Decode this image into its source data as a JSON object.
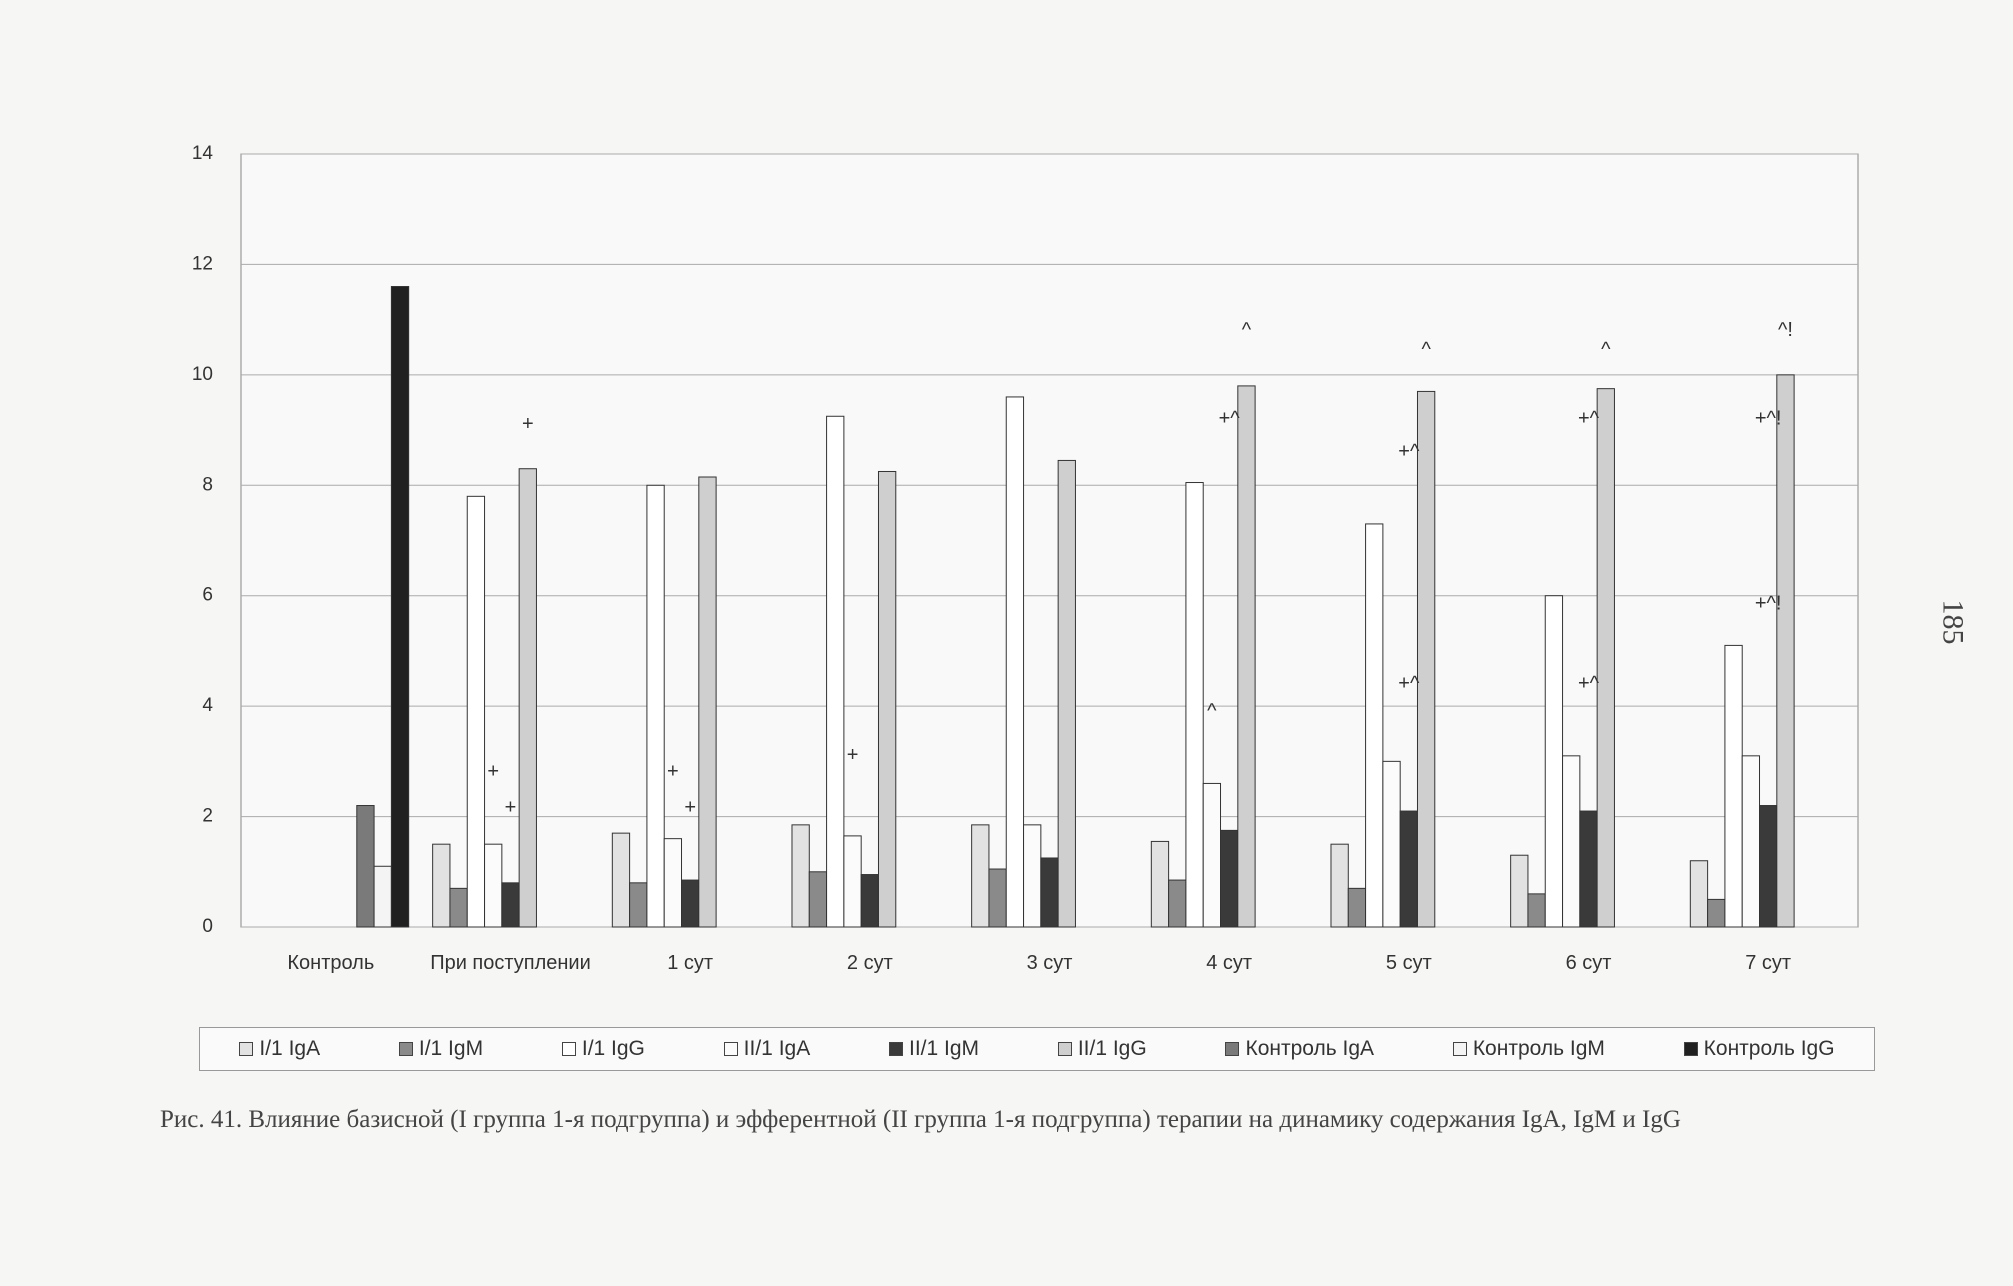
{
  "chart_data": {
    "type": "bar",
    "categories": [
      "Контроль",
      "При поступлении",
      "1 сут",
      "2 сут",
      "3 сут",
      "4 сут",
      "5 сут",
      "6 сут",
      "7 сут"
    ],
    "series": [
      {
        "name": "I/1 IgA",
        "color": "#e2e2e2",
        "values": [
          null,
          1.5,
          1.7,
          1.85,
          1.85,
          1.55,
          1.5,
          1.3,
          1.2
        ]
      },
      {
        "name": "I/1 IgM",
        "color": "#8a8a8a",
        "values": [
          null,
          0.7,
          0.8,
          1.0,
          1.05,
          0.85,
          0.7,
          0.6,
          0.5
        ]
      },
      {
        "name": "I/1 IgG",
        "color": "#ffffff",
        "values": [
          null,
          7.8,
          8.0,
          9.25,
          9.6,
          8.05,
          7.3,
          6.0,
          5.1
        ]
      },
      {
        "name": "II/1 IgA",
        "color": "#fbfbfb",
        "values": [
          null,
          1.5,
          1.6,
          1.65,
          1.85,
          2.6,
          3.0,
          3.1,
          3.1
        ]
      },
      {
        "name": "II/1 IgM",
        "color": "#3a3a3a",
        "values": [
          null,
          0.8,
          0.85,
          0.95,
          1.25,
          1.75,
          2.1,
          2.1,
          2.2
        ]
      },
      {
        "name": "II/1 IgG",
        "color": "#cfcfcf",
        "values": [
          null,
          8.3,
          8.15,
          8.25,
          8.45,
          9.8,
          9.7,
          9.75,
          10.0
        ]
      },
      {
        "name": "Контроль IgA",
        "color": "#7a7a7a",
        "values": [
          2.2,
          null,
          null,
          null,
          null,
          null,
          null,
          null,
          null
        ]
      },
      {
        "name": "Контроль IgM",
        "color": "#f4f4f4",
        "values": [
          1.1,
          null,
          null,
          null,
          null,
          null,
          null,
          null,
          null
        ]
      },
      {
        "name": "Контроль IgG",
        "color": "#202020",
        "values": [
          11.6,
          null,
          null,
          null,
          null,
          null,
          null,
          null,
          null
        ]
      }
    ],
    "ylim": [
      0,
      14
    ],
    "yticks": [
      0,
      2,
      4,
      6,
      8,
      10,
      12,
      14
    ],
    "grid": true,
    "legend": "bottom",
    "annotations": [
      {
        "text": "+",
        "category": 1,
        "series": 5,
        "y": 9.1
      },
      {
        "text": "+",
        "category": 1,
        "series": 3,
        "y": 2.8
      },
      {
        "text": "+",
        "category": 1,
        "series": 4,
        "y": 2.15
      },
      {
        "text": "+",
        "category": 2,
        "series": 3,
        "y": 2.8
      },
      {
        "text": "+",
        "category": 2,
        "series": 4,
        "y": 2.15
      },
      {
        "text": "+",
        "category": 3,
        "series": 3,
        "y": 3.1
      },
      {
        "text": "^",
        "category": 5,
        "series": 5,
        "y": 10.8
      },
      {
        "text": "+^",
        "category": 5,
        "series": 4,
        "y": 9.2
      },
      {
        "text": "^",
        "category": 5,
        "series": 3,
        "y": 3.9
      },
      {
        "text": "^",
        "category": 6,
        "series": 5,
        "y": 10.45
      },
      {
        "text": "+^",
        "category": 6,
        "series": 4,
        "y": 8.6
      },
      {
        "text": "+^",
        "category": 6,
        "series": 4,
        "y": 4.4
      },
      {
        "text": "^",
        "category": 7,
        "series": 5,
        "y": 10.45
      },
      {
        "text": "+^",
        "category": 7,
        "series": 4,
        "y": 9.2
      },
      {
        "text": "+^",
        "category": 7,
        "series": 4,
        "y": 4.4
      },
      {
        "text": "^!",
        "category": 8,
        "series": 5,
        "y": 10.8
      },
      {
        "text": "+^!",
        "category": 8,
        "series": 4,
        "y": 9.2
      },
      {
        "text": "+^!",
        "category": 8,
        "series": 4,
        "y": 5.85
      }
    ],
    "caption": "Рис. 41. Влияние базисной (I группа 1-я подгруппа) и эфферентной (II группа 1-я подгруппа) терапии на динамику содержания IgA, IgM и IgG"
  },
  "page_number": "185"
}
